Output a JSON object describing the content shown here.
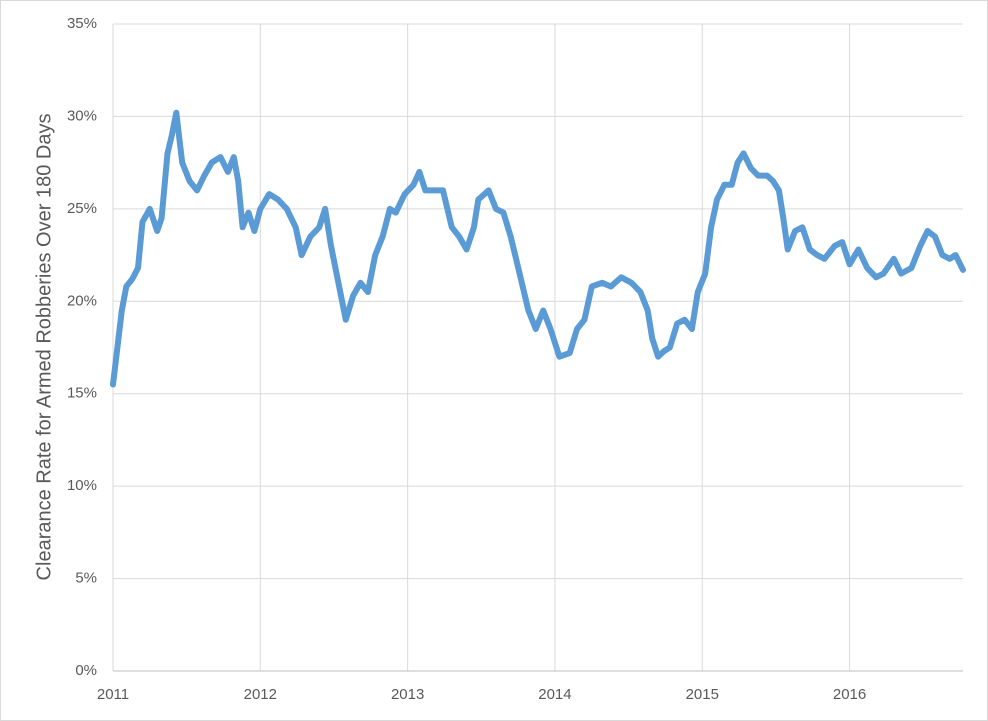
{
  "chart_data": {
    "type": "line",
    "y_label": "Clearance Rate for Armed Robberies Over 180 Days",
    "x": [
      2011.0,
      2011.03,
      2011.06,
      2011.09,
      2011.13,
      2011.17,
      2011.2,
      2011.25,
      2011.3,
      2011.33,
      2011.37,
      2011.4,
      2011.43,
      2011.47,
      2011.52,
      2011.57,
      2011.62,
      2011.67,
      2011.73,
      2011.78,
      2011.82,
      2011.85,
      2011.88,
      2011.92,
      2011.96,
      2012.0,
      2012.06,
      2012.12,
      2012.18,
      2012.24,
      2012.28,
      2012.34,
      2012.4,
      2012.44,
      2012.48,
      2012.53,
      2012.58,
      2012.63,
      2012.68,
      2012.73,
      2012.78,
      2012.83,
      2012.88,
      2012.92,
      2012.98,
      2013.04,
      2013.08,
      2013.12,
      2013.18,
      2013.24,
      2013.3,
      2013.35,
      2013.4,
      2013.45,
      2013.48,
      2013.55,
      2013.6,
      2013.65,
      2013.7,
      2013.76,
      2013.82,
      2013.87,
      2013.92,
      2013.97,
      2014.03,
      2014.1,
      2014.15,
      2014.2,
      2014.25,
      2014.32,
      2014.38,
      2014.45,
      2014.52,
      2014.58,
      2014.63,
      2014.66,
      2014.7,
      2014.74,
      2014.78,
      2014.83,
      2014.88,
      2014.93,
      2014.97,
      2015.02,
      2015.06,
      2015.1,
      2015.15,
      2015.2,
      2015.24,
      2015.28,
      2015.33,
      2015.38,
      2015.44,
      2015.48,
      2015.52,
      2015.55,
      2015.58,
      2015.63,
      2015.68,
      2015.73,
      2015.78,
      2015.83,
      2015.9,
      2015.95,
      2016.0,
      2016.06,
      2016.12,
      2016.18,
      2016.23,
      2016.3,
      2016.35,
      2016.42,
      2016.48,
      2016.53,
      2016.58,
      2016.63,
      2016.68,
      2016.72,
      2016.77
    ],
    "values": [
      15.5,
      17.5,
      19.5,
      20.8,
      21.2,
      21.8,
      24.3,
      25.0,
      23.8,
      24.5,
      28.0,
      29.0,
      30.2,
      27.5,
      26.5,
      26.0,
      26.8,
      27.5,
      27.8,
      27.0,
      27.8,
      26.5,
      24.0,
      24.8,
      23.8,
      25.0,
      25.8,
      25.5,
      25.0,
      24.0,
      22.5,
      23.5,
      24.0,
      25.0,
      23.0,
      21.0,
      19.0,
      20.3,
      21.0,
      20.5,
      22.5,
      23.5,
      25.0,
      24.8,
      25.8,
      26.3,
      27.0,
      26.0,
      26.0,
      26.0,
      24.0,
      23.5,
      22.8,
      24.0,
      25.5,
      26.0,
      25.0,
      24.8,
      23.5,
      21.5,
      19.5,
      18.5,
      19.5,
      18.5,
      17.0,
      17.2,
      18.5,
      19.0,
      20.8,
      21.0,
      20.8,
      21.3,
      21.0,
      20.5,
      19.5,
      18.0,
      17.0,
      17.3,
      17.5,
      18.8,
      19.0,
      18.5,
      20.5,
      21.5,
      24.0,
      25.5,
      26.3,
      26.3,
      27.5,
      28.0,
      27.2,
      26.8,
      26.8,
      26.5,
      26.0,
      24.5,
      22.8,
      23.8,
      24.0,
      22.8,
      22.5,
      22.3,
      23.0,
      23.2,
      22.0,
      22.8,
      21.8,
      21.3,
      21.5,
      22.3,
      21.5,
      21.8,
      23.0,
      23.8,
      23.5,
      22.5,
      22.3,
      22.5,
      21.7
    ],
    "color": "#5b9bd5",
    "xlim": [
      2011,
      2016.77
    ],
    "xticks": [
      2011,
      2012,
      2013,
      2014,
      2015,
      2016
    ],
    "ylim": [
      0,
      35
    ],
    "yticks": [
      {
        "value": 0,
        "label": "0%"
      },
      {
        "value": 5,
        "label": "5%"
      },
      {
        "value": 10,
        "label": "10%"
      },
      {
        "value": 15,
        "label": "15%"
      },
      {
        "value": 20,
        "label": "20%"
      },
      {
        "value": 25,
        "label": "25%"
      },
      {
        "value": 30,
        "label": "30%"
      },
      {
        "value": 35,
        "label": "35%"
      }
    ],
    "grid": true
  }
}
